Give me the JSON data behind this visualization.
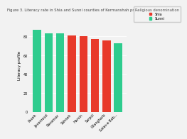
{
  "title": "Figure 3. Literacy rate in Shia and Sunni counties of Kermanshah province (2016)",
  "ylabel": "Literacy profile",
  "categories": [
    "Paveh",
    "Javanroud",
    "Ravansar",
    "Sahneh",
    "Harsin",
    "Sarpol",
    "Gilangharb",
    "Salas-e Bab..."
  ],
  "values": [
    87,
    83,
    83,
    81,
    80,
    77,
    76,
    73
  ],
  "colors": [
    "#2ecc8e",
    "#2ecc8e",
    "#2ecc8e",
    "#e8392a",
    "#e8392a",
    "#e8392a",
    "#e8392a",
    "#2ecc8e"
  ],
  "legend_labels": [
    "Shia",
    "Sunni"
  ],
  "legend_colors": [
    "#e8392a",
    "#2ecc8e"
  ],
  "legend_title": "Religious denomination",
  "ylim": [
    0,
    100
  ],
  "yticks": [
    0,
    20,
    40,
    60,
    80
  ],
  "bg_color": "#f2f2f2",
  "title_fontsize": 3.8,
  "axis_label_fontsize": 4.0,
  "tick_fontsize": 3.5,
  "legend_fontsize": 3.5,
  "legend_title_fontsize": 3.8
}
